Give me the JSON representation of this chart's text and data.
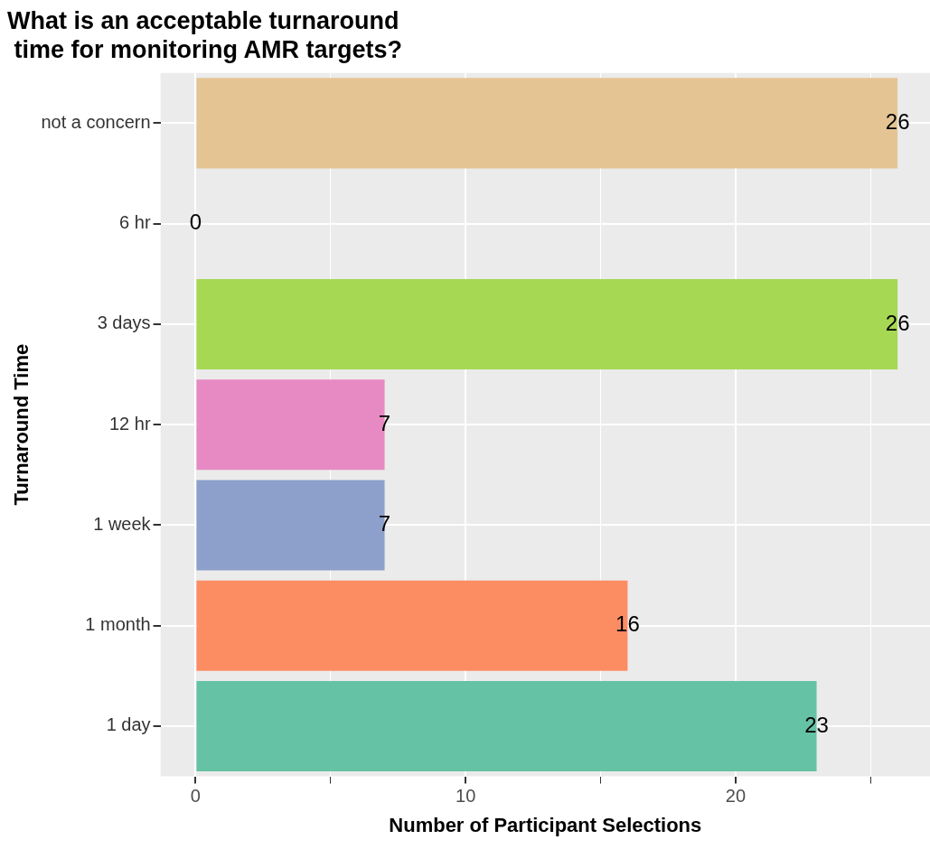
{
  "chart_data": {
    "type": "bar",
    "orientation": "horizontal",
    "title": "What is an acceptable turnaround\n time for monitoring AMR targets?",
    "xlabel": "Number of Participant Selections",
    "ylabel": "Turnaround Time",
    "categories": [
      "not a concern",
      "6 hr",
      "3 days",
      "12 hr",
      "1 week",
      "1 month",
      "1 day"
    ],
    "values": [
      26,
      0,
      26,
      7,
      7,
      16,
      23
    ],
    "colors": [
      "#e5c494",
      "#ffd92f",
      "#a6d854",
      "#e78ac3",
      "#8da0cb",
      "#fc8d62",
      "#66c2a5"
    ],
    "xlim": [
      -1.3,
      27.2
    ],
    "xticks": [
      0,
      {
        "value": 5,
        "label": null
      },
      10,
      {
        "value": 15,
        "label": null
      },
      20,
      {
        "value": 25,
        "label": null
      }
    ],
    "grid": true,
    "legend": false,
    "data_labels": true
  }
}
